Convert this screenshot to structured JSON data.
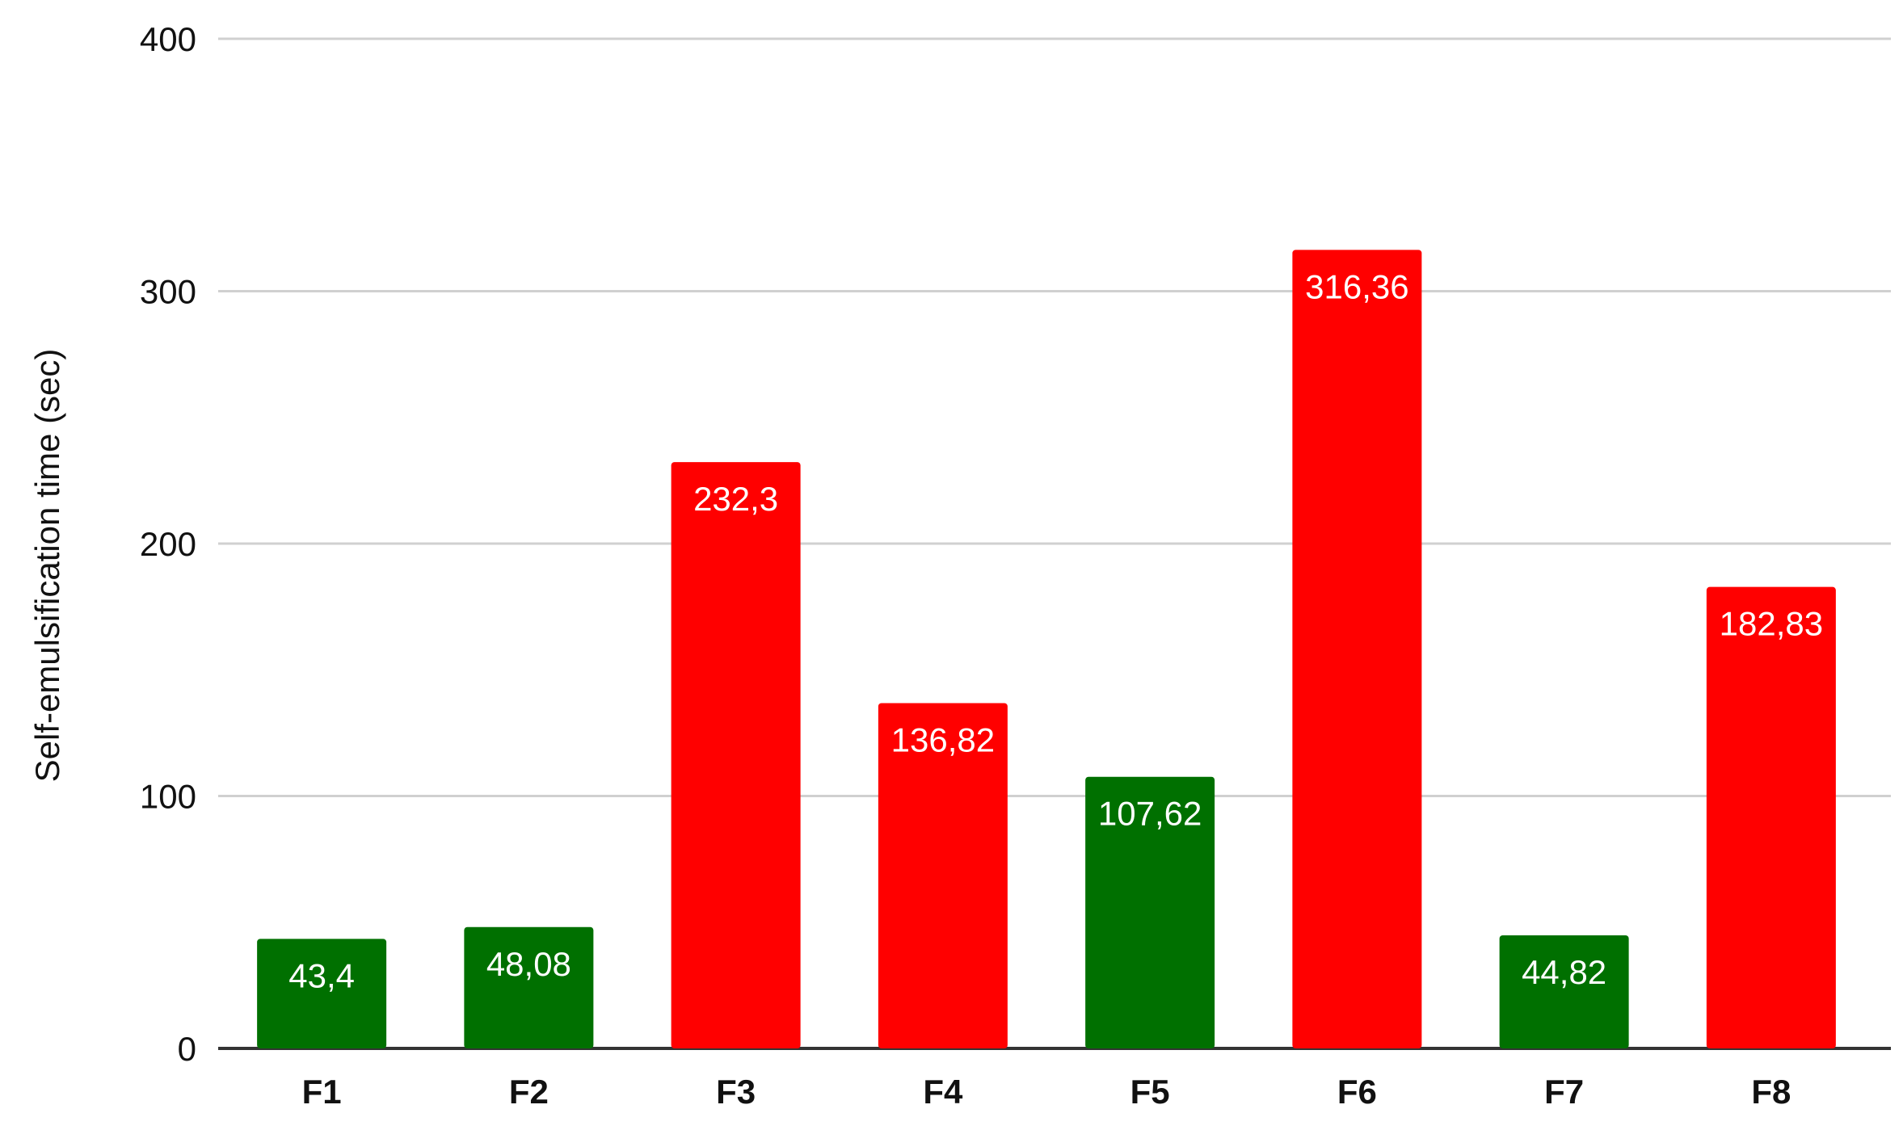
{
  "chart_data": {
    "type": "bar",
    "categories": [
      "F1",
      "F2",
      "F3",
      "F4",
      "F5",
      "F6",
      "F7",
      "F8"
    ],
    "values": [
      43.4,
      48.08,
      232.3,
      136.82,
      107.62,
      316.36,
      44.82,
      182.83
    ],
    "data_labels": [
      "43,4",
      "48,08",
      "232,3",
      "136,82",
      "107,62",
      "316,36",
      "44,82",
      "182,83"
    ],
    "bar_colors": [
      "#007000",
      "#007000",
      "#ff0000",
      "#ff0000",
      "#007000",
      "#ff0000",
      "#007000",
      "#ff0000"
    ],
    "title": "",
    "xlabel": "",
    "ylabel": "Self-emulsification time (sec)",
    "ylim": [
      0,
      400
    ],
    "yticks": [
      0,
      100,
      200,
      300,
      400
    ],
    "grid": true,
    "legend": "none"
  }
}
